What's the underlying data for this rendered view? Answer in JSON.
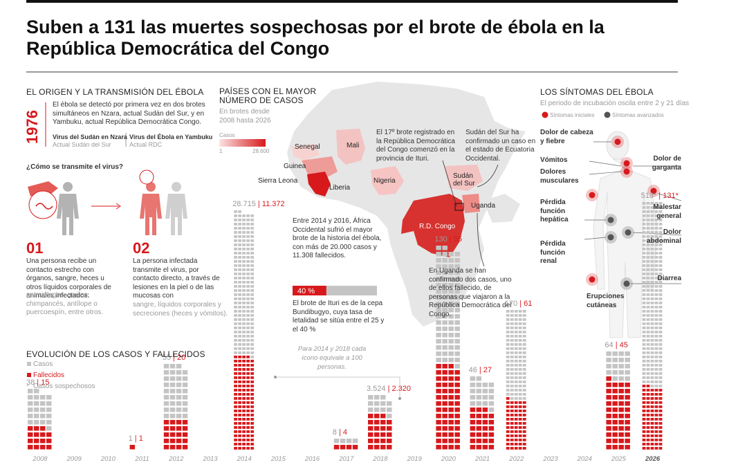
{
  "title": "Suben a 131 las muertes sospechosas por el brote de ébola en la República Democrática del Congo",
  "origin": {
    "heading": "EL ORIGEN Y LA TRANSMISIÓN DEL ÉBOLA",
    "year": "1976",
    "text": "El ébola se detectó por primera vez en dos brotes simultáneos en Nzara, actual Sudán del Sur, y en Yambuku, actual República Democrática Congo.",
    "virus1_name": "Virus del Sudán en Nzara",
    "virus1_sub": "Actual Sudán del Sur",
    "virus2_name": "Virus del Ébola en Yambuku",
    "virus2_sub": "Actual RDC",
    "question": "¿Cómo se transmite el virus?",
    "step1_num": "01",
    "step1_text": "Una persona recibe un contacto estrecho con órganos, sangre, heces u otros líquidos corporales de animales infectados:",
    "step1_grey": "murciélagos, gorilas, chimpancés, antílope o puercoespín, entre otros.",
    "step2_num": "02",
    "step2_text": "La persona infectada transmite el virus, por contacto directo, a través de lesiones en la piel o de las mucosas con",
    "step2_grey": "sangre, líquidos corporales y secreciones (heces y vómitos)."
  },
  "map": {
    "heading": "PAÍSES CON EL MAYOR NÚMERO DE CASOS",
    "subheading": "En brotes desde 2008 hasta 2026",
    "scale_label": "Casos",
    "scale_min": "1",
    "scale_max": "28.600",
    "countries": [
      "Senegal",
      "Mali",
      "Guinea",
      "Sierra Leona",
      "Liberia",
      "Nigeria",
      "Sudán del Sur",
      "Uganda",
      "R.D. Congo"
    ],
    "note_17": "El 17º brote registrado en la República Democrática del Congo comenzó en la provincia de Ituri.",
    "note_sudan": "Sudán del Sur ha confirmado un caso en el estado de Ecuatoria Occidental.",
    "note_west": "Entre 2014 y 2016, África Occidental sufrió el mayor brote de la historia del ébola, con más de 20.000 casos y 11.308 fallecidos.",
    "note_uganda": "En Uganda se han confirmado dos casos, uno de ellos fallecido, de personas que viajaron a la República Democrática del Congo.",
    "ituri_pct": "40 %",
    "ituri_pct_value": 0.4,
    "ituri_text": "El brote de Ituri es de la cepa Bundibugyo, cuya tasa de letalidad se sitúa entre el 25 y el 40 %"
  },
  "symptoms": {
    "heading": "LOS SÍNTOMAS DEL ÉBOLA",
    "subheading": "El periodo de incubación oscila entre 2 y 21 días",
    "legend_initial": "Síntomas iniciales",
    "legend_advanced": "Síntomas avanzados",
    "items": [
      "Dolor de cabeza y fiebre",
      "Vómitos",
      "Dolores musculares",
      "Pérdida función hepática",
      "Pérdida función renal",
      "Erupciones cutáneas",
      "Dolor de garganta",
      "Malestar general",
      "Dolor abdominal",
      "Diarrea"
    ]
  },
  "evolution": {
    "heading": "EVOLUCIÓN DE LOS CASOS Y FALLECIDOS",
    "legend_cases": "Casos",
    "legend_deaths": "Fallecidos",
    "legend_suspected": "Casos sospechosos",
    "note_scale": "Para 2014 y 2018 cada ícono equivale a 100 personas."
  },
  "colors": {
    "accent": "#d7191c",
    "grey_icon": "#c4c4c4",
    "map_land": "#e6e6e6",
    "map_dark": "#d7191c"
  },
  "chart_data": {
    "type": "bar",
    "title": "EVOLUCIÓN DE LOS CASOS Y FALLECIDOS",
    "categories": [
      "2008",
      "2009",
      "2010",
      "2011",
      "2012",
      "2013",
      "2014",
      "2015",
      "2016",
      "2017",
      "2018",
      "2019",
      "2020",
      "2021",
      "2022",
      "2023",
      "2024",
      "2025",
      "2026"
    ],
    "series": [
      {
        "name": "Casos",
        "values": [
          38,
          0,
          0,
          1,
          55,
          0,
          28715,
          0,
          0,
          8,
          3524,
          0,
          130,
          46,
          170,
          0,
          0,
          64,
          513
        ]
      },
      {
        "name": "Fallecidos",
        "values": [
          15,
          0,
          0,
          1,
          20,
          0,
          11372,
          0,
          0,
          4,
          2320,
          0,
          55,
          27,
          61,
          0,
          0,
          45,
          131
        ]
      }
    ],
    "labels": [
      "38 | 15",
      "",
      "",
      "1 | 1",
      "55 | 20",
      "",
      "28.715 | 11.372",
      "",
      "",
      "8 | 4",
      "3.524 | 2.320",
      "",
      "130 | 55",
      "46 | 27",
      "170 | 61",
      "",
      "",
      "64 | 45",
      "513* | 131*"
    ]
  }
}
